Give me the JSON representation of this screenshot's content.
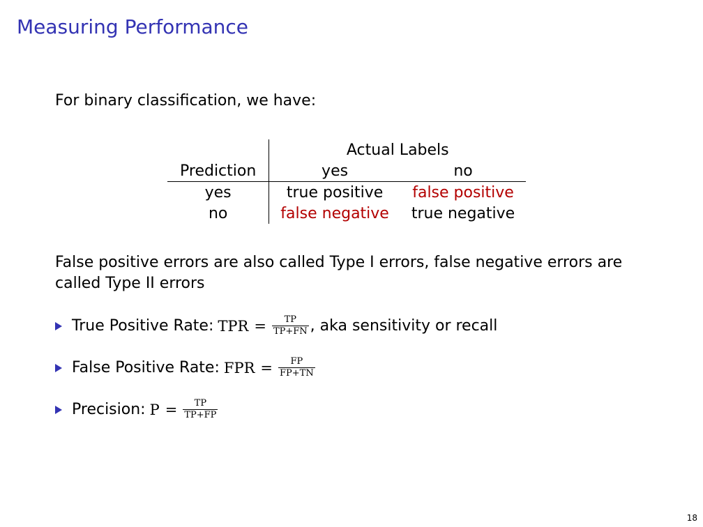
{
  "slide": {
    "title": "Measuring Performance",
    "intro": "For binary classification, we have:",
    "page_number": "18"
  },
  "matrix": {
    "actual_header": "Actual Labels",
    "prediction_header": "Prediction",
    "col_yes": "yes",
    "col_no": "no",
    "rows": [
      {
        "label": "yes",
        "c1": "true positive",
        "c2": "false positive"
      },
      {
        "label": "no",
        "c1": "false negative",
        "c2": "true negative"
      }
    ],
    "error_color": "#b30000"
  },
  "paragraph": "False positive errors are also called Type I errors, false negative errors are called Type II errors",
  "bullets": [
    {
      "label": "True Positive Rate:",
      "lhs": "TPR",
      "eq": "=",
      "num": "TP",
      "den": "TP+FN",
      "suffix": ", aka sensitivity or recall"
    },
    {
      "label": "False Positive Rate:",
      "lhs": "FPR",
      "eq": "=",
      "num": "FP",
      "den": "FP+TN",
      "suffix": ""
    },
    {
      "label": "Precision:",
      "lhs": "P",
      "eq": "=",
      "num": "TP",
      "den": "TP+FP",
      "suffix": ""
    }
  ],
  "colors": {
    "title": "#3333b3",
    "bullet": "#3333b3"
  }
}
